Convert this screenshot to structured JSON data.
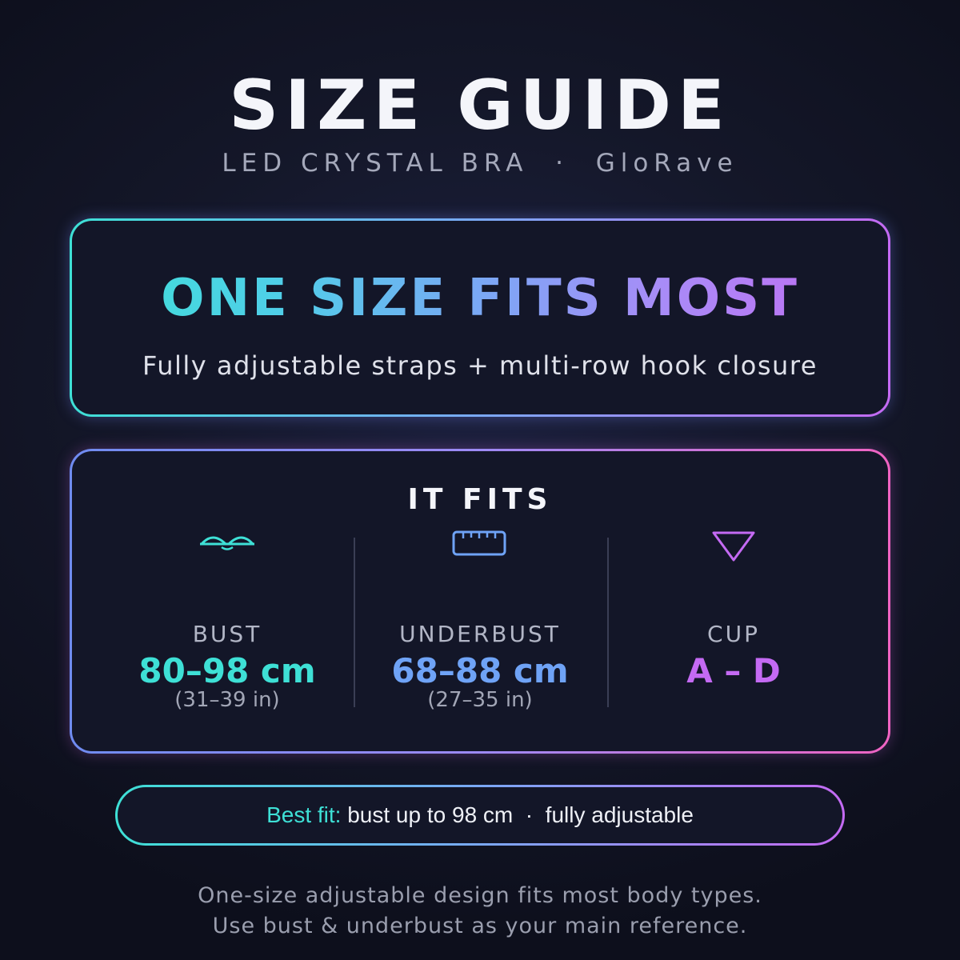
{
  "header": {
    "title": "SIZE GUIDE",
    "subtitle": "LED CRYSTAL BRA  ·  GloRave"
  },
  "banner": {
    "headline": "ONE SIZE FITS MOST",
    "description": "Fully adjustable straps + multi-row hook closure"
  },
  "fits": {
    "title": "IT FITS",
    "columns": [
      {
        "icon": "bra-cups-icon",
        "label": "BUST",
        "value": "80–98 cm",
        "imperial": "(31–39 in)",
        "color": "#3ee0d6"
      },
      {
        "icon": "ruler-icon",
        "label": "UNDERBUST",
        "value": "68–88 cm",
        "imperial": "(27–35 in)",
        "color": "#6fa3f6"
      },
      {
        "icon": "triangle-icon",
        "label": "CUP",
        "value": "A – D",
        "imperial": "",
        "color": "#c46af3"
      }
    ]
  },
  "best_fit": {
    "label": "Best fit:",
    "text": " bust up to 98 cm  ·  fully adjustable"
  },
  "footer": {
    "line1": "One-size adjustable design fits most body types.",
    "line2": "Use bust & underbust as your main reference."
  }
}
